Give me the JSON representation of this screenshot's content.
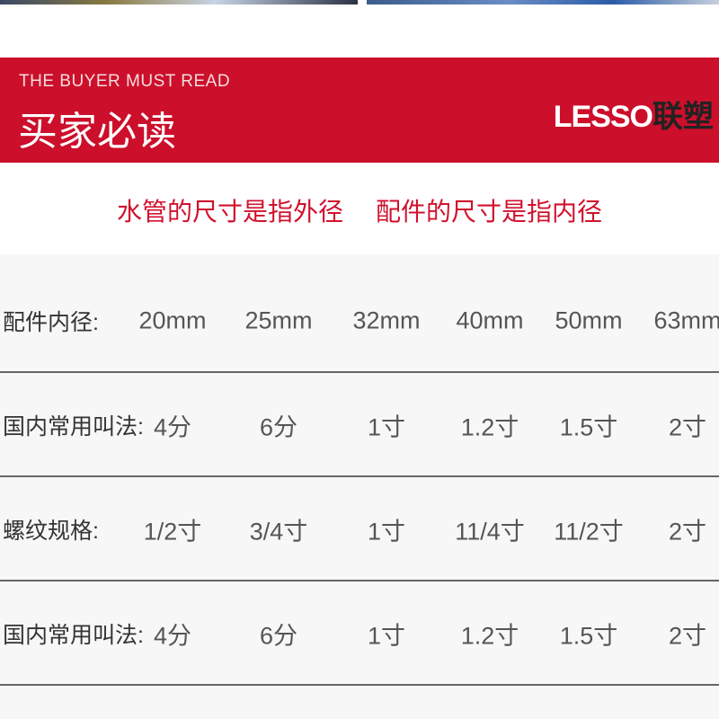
{
  "banner": {
    "subtitle_en": "THE BUYER MUST READ",
    "title_cn": "买家必读",
    "logo_latin": "LESSO",
    "logo_cn": "联塑"
  },
  "notice": {
    "pipe": "水管的尺寸是指外径",
    "fitting": "配件的尺寸是指内径"
  },
  "colors": {
    "brand_red": "#cc0f2b",
    "table_bg": "#f7f7f7"
  },
  "table": {
    "rows": [
      {
        "label": "配件内径:",
        "values": [
          "20mm",
          "25mm",
          "32mm",
          "40mm",
          "50mm",
          "63mm"
        ]
      },
      {
        "label": "国内常用叫法:",
        "values": [
          "4分",
          "6分",
          "1寸",
          "1.2寸",
          "1.5寸",
          "2寸"
        ]
      },
      {
        "label": "螺纹规格:",
        "values": [
          "1/2寸",
          "3/4寸",
          "1寸",
          "11/4寸",
          "11/2寸",
          "2寸"
        ]
      },
      {
        "label": "国内常用叫法:",
        "values": [
          "4分",
          "6分",
          "1寸",
          "1.2寸",
          "1.5寸",
          "2寸"
        ]
      }
    ]
  }
}
